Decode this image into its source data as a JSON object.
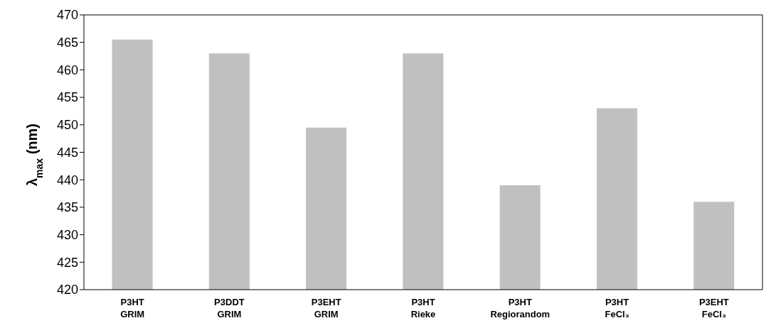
{
  "chart_data": {
    "type": "bar",
    "ylabel": "λ$_{max}$ (nm)",
    "categories": [
      "P3HT\nGRIM",
      "P3DDT\nGRIM",
      "P3EHT\nGRIM",
      "P3HT\nRieke",
      "P3HT\nRegiorandom",
      "P3HT\nFeCl₃",
      "P3EHT\nFeCl₃"
    ],
    "values": [
      465.5,
      463,
      449.5,
      463,
      439,
      453,
      436
    ],
    "color": "#c0c0c0",
    "ylim": [
      420,
      470
    ],
    "yticks": [
      420,
      425,
      430,
      435,
      440,
      445,
      450,
      455,
      460,
      465,
      470
    ],
    "grid": false
  }
}
